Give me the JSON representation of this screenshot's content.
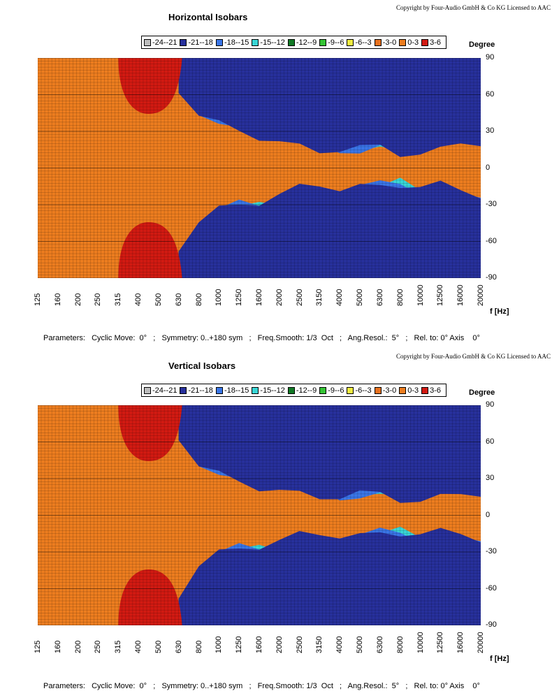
{
  "legend": [
    {
      "label": "-24--21",
      "color": "#bdbdbd"
    },
    {
      "label": "-21--18",
      "color": "#27309c"
    },
    {
      "label": "-18--15",
      "color": "#3a76e8"
    },
    {
      "label": "-15--12",
      "color": "#39d6d6"
    },
    {
      "label": "-12--9",
      "color": "#127a26"
    },
    {
      "label": "-9--6",
      "color": "#35c435"
    },
    {
      "label": "-6--3",
      "color": "#f0ec40"
    },
    {
      "label": "-3-0",
      "color": "#e8711e"
    },
    {
      "label": "0-3",
      "color": "#ed7d1f"
    },
    {
      "label": "3-6",
      "color": "#d21a12"
    }
  ],
  "chart_data": [
    {
      "type": "heatmap",
      "title": "Horizontal Isobars",
      "copyright": "Copyright by Four-Audio GmbH & Co KG   Licensed to AAC",
      "ylabel": "Degree",
      "xlabel": "f [Hz]",
      "ylim": [
        -90,
        90
      ],
      "y_ticks": [
        "90",
        "60",
        "30",
        "0",
        "-30",
        "-60",
        "-90"
      ],
      "x_ticks": [
        "125",
        "160",
        "200",
        "250",
        "315",
        "400",
        "500",
        "630",
        "800",
        "1000",
        "1250",
        "1600",
        "2000",
        "2500",
        "3150",
        "4000",
        "5000",
        "6300",
        "8000",
        "10000",
        "12500",
        "16000",
        "20000"
      ],
      "x_scale": "log",
      "beamwidth_6db_deg": [
        90,
        90,
        90,
        90,
        90,
        90,
        90,
        90,
        80,
        60,
        50,
        45,
        40,
        35,
        30,
        30,
        25,
        25,
        20,
        25,
        30,
        40,
        40
      ],
      "red_lobe_x": [
        "315",
        "630"
      ],
      "parameters": "Parameters:   Cyclic Move:  0°   ;   Symmetry: 0..+180 sym   ;   Freq.Smooth: 1/3  Oct   ;   Ang.Resol.:  5°   ;   Rel. to: 0° Axis    0°"
    },
    {
      "type": "heatmap",
      "title": "Vertical Isobars",
      "copyright": "Copyright by Four-Audio GmbH & Co KG   Licensed to AAC",
      "ylabel": "Degree",
      "xlabel": "f [Hz]",
      "ylim": [
        -90,
        90
      ],
      "y_ticks": [
        "90",
        "60",
        "30",
        "0",
        "-30",
        "-60",
        "-90"
      ],
      "x_ticks": [
        "125",
        "160",
        "200",
        "250",
        "315",
        "400",
        "500",
        "630",
        "800",
        "1000",
        "1250",
        "1600",
        "2000",
        "2500",
        "3150",
        "4000",
        "5000",
        "6300",
        "8000",
        "10000",
        "12500",
        "16000",
        "20000"
      ],
      "x_scale": "log",
      "beamwidth_6db_deg": [
        90,
        90,
        90,
        90,
        90,
        90,
        90,
        90,
        75,
        55,
        45,
        40,
        38,
        35,
        32,
        30,
        28,
        25,
        22,
        25,
        30,
        35,
        35
      ],
      "red_lobe_x": [
        "315",
        "630"
      ],
      "parameters": "Parameters:   Cyclic Move:  0°   ;   Symmetry: 0..+180 sym   ;   Freq.Smooth: 1/3  Oct   ;   Ang.Resol.:  5°   ;   Rel. to: 0° Axis    0°"
    }
  ]
}
